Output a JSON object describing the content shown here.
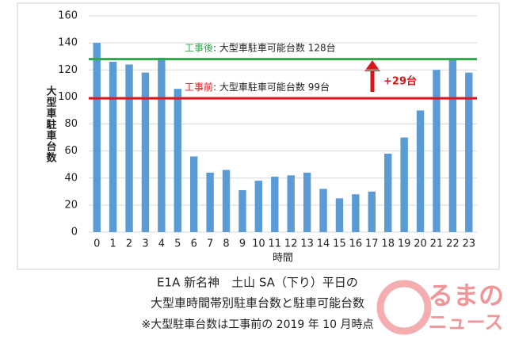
{
  "chart_data": {
    "type": "bar",
    "categories": [
      "0",
      "1",
      "2",
      "3",
      "4",
      "5",
      "6",
      "7",
      "8",
      "9",
      "10",
      "11",
      "12",
      "13",
      "14",
      "15",
      "16",
      "17",
      "18",
      "19",
      "20",
      "21",
      "22",
      "23"
    ],
    "values": [
      140,
      126,
      124,
      118,
      129,
      106,
      56,
      44,
      46,
      31,
      38,
      41,
      42,
      44,
      32,
      25,
      28,
      30,
      58,
      70,
      90,
      120,
      128,
      118
    ],
    "color": "#5b9bd5",
    "ylim": [
      0,
      160
    ],
    "yticks": [
      0,
      20,
      40,
      60,
      80,
      100,
      120,
      140,
      160
    ],
    "grid": true,
    "y_label": "大型車駐車台数",
    "x_label": "時間",
    "reference_lines": [
      {
        "prefix": "工事後",
        "label": ": 大型車駐車可能台数 128台",
        "value": 128,
        "color": "#2ea84a"
      },
      {
        "prefix": "工事前",
        "label": ": 大型車駐車可能台数 99台",
        "value": 99,
        "color": "#e0161d"
      }
    ],
    "annotation": "+29台",
    "caption": [
      "E1A 新名神　土山 SA（下り）平日の",
      "大型車時間帯別駐車台数と駐車可能台数",
      "※大型駐車台数は工事前の 2019 年 10 月時点"
    ]
  },
  "watermark": [
    "るまの",
    "ニュース"
  ]
}
